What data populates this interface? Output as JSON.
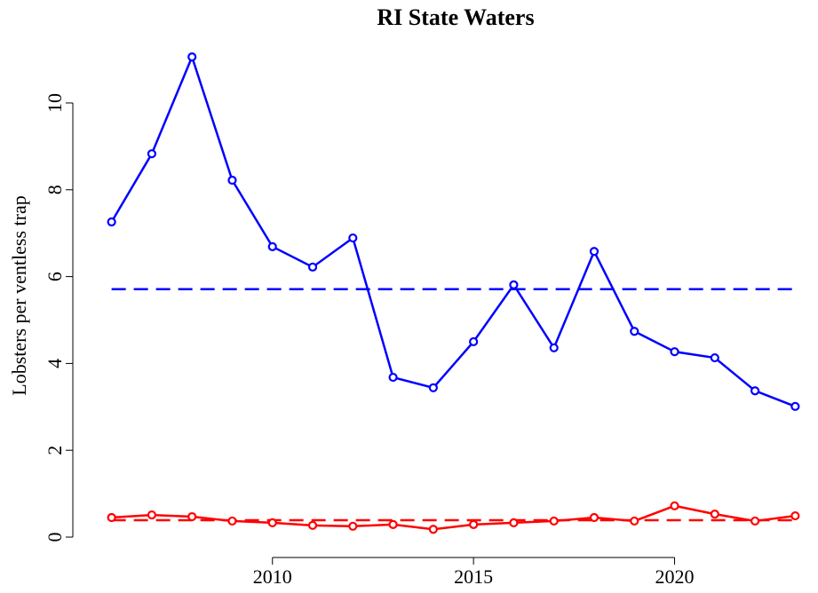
{
  "chart_data": {
    "type": "line",
    "title": "RI State Waters",
    "y_label": "Lobsters per ventless trap",
    "x": [
      2006,
      2007,
      2008,
      2009,
      2010,
      2011,
      2012,
      2013,
      2014,
      2015,
      2016,
      2017,
      2018,
      2019,
      2020,
      2021,
      2022,
      2023
    ],
    "series": [
      {
        "color": "#0000ff",
        "values": [
          7.26,
          8.83,
          11.06,
          8.22,
          6.69,
          6.22,
          6.89,
          3.68,
          3.44,
          4.5,
          5.81,
          4.36,
          6.58,
          4.74,
          4.27,
          4.13,
          3.37,
          3.01
        ]
      },
      {
        "color": "#ff0000",
        "values": [
          0.45,
          0.51,
          0.47,
          0.37,
          0.33,
          0.27,
          0.25,
          0.29,
          0.18,
          0.29,
          0.33,
          0.37,
          0.45,
          0.37,
          0.72,
          0.53,
          0.37,
          0.49
        ]
      }
    ],
    "hlines": [
      {
        "value": 5.71,
        "color": "#0000ff"
      },
      {
        "value": 0.39,
        "color": "#ff0000"
      }
    ],
    "xlim": [
      2005.5,
      2023.5
    ],
    "xticks": [
      2010,
      2015,
      2020
    ],
    "ylim": [
      -0.3,
      11.4
    ],
    "yticks": [
      0,
      2,
      4,
      6,
      8,
      10
    ]
  }
}
